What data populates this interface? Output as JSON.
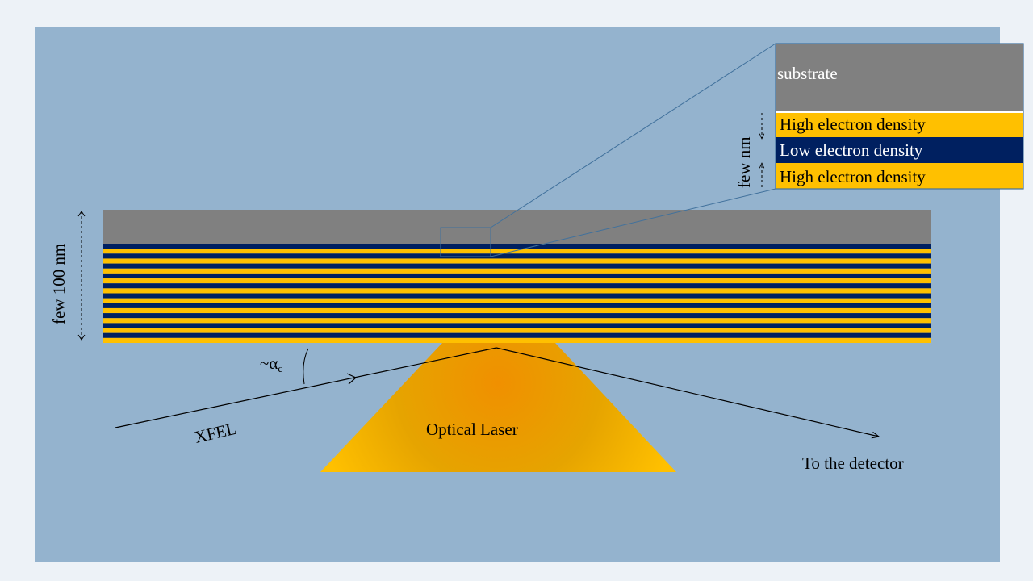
{
  "inset": {
    "substrate": "substrate",
    "high_1": "High electron density",
    "low": "Low electron density",
    "high_2": "High electron density"
  },
  "dimensions": {
    "inset_thickness": "few nm",
    "stack_thickness": "few 100 nm"
  },
  "angle": {
    "symbol": "~α",
    "subscript": "c"
  },
  "labels": {
    "xfel": "XFEL",
    "optical_laser": "Optical Laser",
    "detector": "To the detector"
  },
  "colors": {
    "slide_background": "#94b3ce",
    "page_background": "#edf2f7",
    "substrate": "#808080",
    "high_density": "#ffc000",
    "low_density": "#002060",
    "laser_center": "#f09000",
    "laser_edge": "#ffc000",
    "callout_line": "#41719c"
  }
}
